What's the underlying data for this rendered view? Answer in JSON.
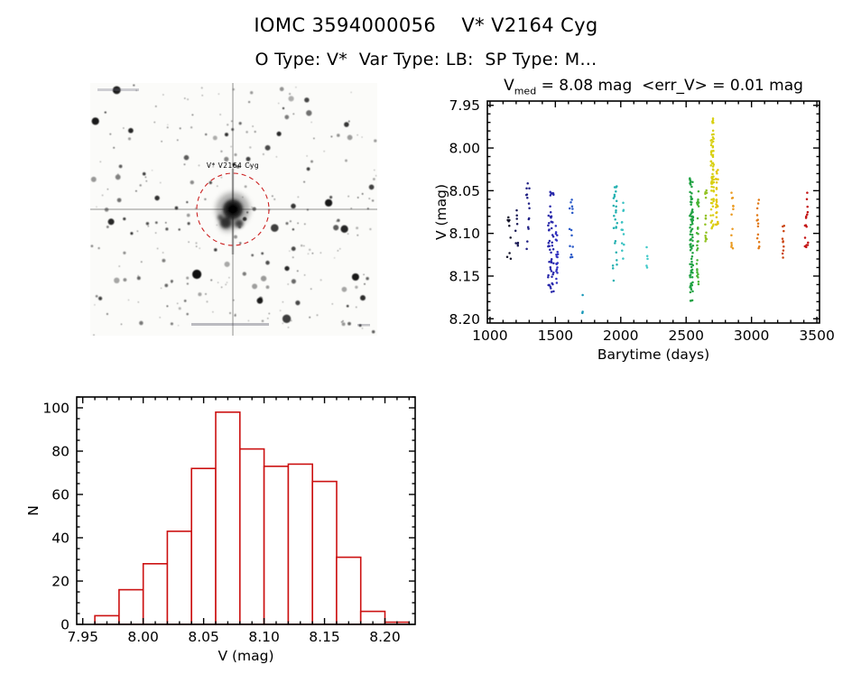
{
  "header": {
    "title": "IOMC 3594000056    V* V2164 Cyg",
    "subtitle": "O Type: V*  Var Type: LB:  SP Type: M..."
  },
  "finder": {
    "label": "V* V2164 Cyg",
    "label_color": "#cc2222",
    "circle_color": "#cc2222"
  },
  "chart_data": [
    {
      "type": "scatter",
      "title": "V_med = 8.08 mag  <err_V> = 0.01 mag",
      "title_parts": {
        "base": "V",
        "sub": "med",
        "rest": " = 8.08 mag  <err_V> = 0.01 mag"
      },
      "xlabel": "Barytime (days)",
      "ylabel": "V (mag)",
      "xlim": [
        980,
        3520
      ],
      "ylim": [
        7.945,
        8.205
      ],
      "y_axis_inverted": true,
      "xticks": [
        1000,
        1500,
        2000,
        2500,
        3000,
        3500
      ],
      "yticks": [
        7.95,
        8.0,
        8.05,
        8.1,
        8.15,
        8.2
      ],
      "xminor": 100,
      "yminor": 0.01,
      "legend": "none",
      "grid": false,
      "clusters": [
        {
          "x": 1145,
          "xs": 18,
          "n": 9,
          "y0": 8.08,
          "y1": 8.13,
          "color": "#15152a"
        },
        {
          "x": 1205,
          "xs": 10,
          "n": 9,
          "y0": 8.07,
          "y1": 8.12,
          "color": "#1a1a55"
        },
        {
          "x": 1290,
          "xs": 12,
          "n": 14,
          "y0": 8.03,
          "y1": 8.12,
          "color": "#202085"
        },
        {
          "x": 1465,
          "xs": 22,
          "n": 55,
          "y0": 8.05,
          "y1": 8.17,
          "color": "#2828aa"
        },
        {
          "x": 1512,
          "xs": 10,
          "n": 20,
          "y0": 8.08,
          "y1": 8.16,
          "color": "#3232c2"
        },
        {
          "x": 1620,
          "xs": 15,
          "n": 14,
          "y0": 8.06,
          "y1": 8.13,
          "color": "#2a5ac8"
        },
        {
          "x": 1705,
          "xs": 5,
          "n": 3,
          "y0": 8.17,
          "y1": 8.195,
          "color": "#1898b8"
        },
        {
          "x": 1955,
          "xs": 18,
          "n": 26,
          "y0": 8.04,
          "y1": 8.16,
          "color": "#22b0b0"
        },
        {
          "x": 2015,
          "xs": 10,
          "n": 12,
          "y0": 8.06,
          "y1": 8.13,
          "color": "#38c2c2"
        },
        {
          "x": 2200,
          "xs": 6,
          "n": 5,
          "y0": 8.11,
          "y1": 8.14,
          "color": "#42caca"
        },
        {
          "x": 2540,
          "xs": 13,
          "n": 85,
          "y0": 8.03,
          "y1": 8.18,
          "color": "#22a244"
        },
        {
          "x": 2588,
          "xs": 8,
          "n": 30,
          "y0": 8.05,
          "y1": 8.16,
          "color": "#46b432"
        },
        {
          "x": 2650,
          "xs": 8,
          "n": 15,
          "y0": 8.04,
          "y1": 8.12,
          "color": "#92c222"
        },
        {
          "x": 2700,
          "xs": 12,
          "n": 70,
          "y0": 7.965,
          "y1": 8.1,
          "color": "#d8d012"
        },
        {
          "x": 2736,
          "xs": 8,
          "n": 25,
          "y0": 8.02,
          "y1": 8.09,
          "color": "#e2c402"
        },
        {
          "x": 2855,
          "xs": 10,
          "n": 13,
          "y0": 8.05,
          "y1": 8.12,
          "color": "#ea9a20"
        },
        {
          "x": 3050,
          "xs": 10,
          "n": 13,
          "y0": 8.05,
          "y1": 8.12,
          "color": "#e27812"
        },
        {
          "x": 3245,
          "xs": 10,
          "n": 10,
          "y0": 8.09,
          "y1": 8.13,
          "color": "#ca4410"
        },
        {
          "x": 3420,
          "xs": 13,
          "n": 16,
          "y0": 8.05,
          "y1": 8.12,
          "color": "#c41212"
        }
      ]
    },
    {
      "type": "bar",
      "title": "",
      "xlabel": "V (mag)",
      "ylabel": "N",
      "bin_start": 7.96,
      "bin_width": 0.02,
      "counts": [
        4,
        16,
        28,
        43,
        72,
        98,
        81,
        73,
        74,
        66,
        31,
        6,
        1
      ],
      "xlim": [
        7.945,
        8.225
      ],
      "ylim": [
        0,
        105
      ],
      "xticks": [
        7.95,
        8.0,
        8.05,
        8.1,
        8.15,
        8.2
      ],
      "yticks": [
        0,
        20,
        40,
        60,
        80,
        100
      ],
      "xminor": 0.01,
      "yminor": 5,
      "legend": "none",
      "grid": false,
      "color": "#cc1111"
    }
  ]
}
